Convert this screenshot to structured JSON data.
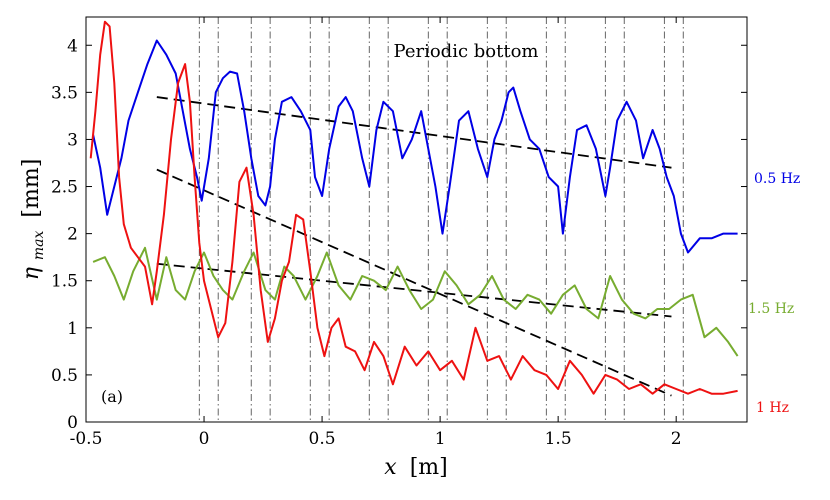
{
  "chart_data": {
    "type": "line",
    "title": "Periodic bottom",
    "panel_label": "(a)",
    "xlabel_var": "x",
    "xlabel_unit": "[m]",
    "ylabel_var": "η",
    "ylabel_sub": "max",
    "ylabel_unit": "[mm]",
    "xlim": [
      -0.5,
      2.3
    ],
    "ylim": [
      0,
      4.3
    ],
    "xticks": [
      -0.5,
      0,
      0.5,
      1,
      1.5,
      2
    ],
    "xtick_labels": [
      "-0.5",
      "0",
      "0.5",
      "1",
      "1.5",
      "2"
    ],
    "yticks": [
      0,
      0.5,
      1,
      1.5,
      2,
      2.5,
      3,
      3.5,
      4
    ],
    "ytick_labels": [
      "0",
      "0.5",
      "1",
      "1.5",
      "2",
      "2.5",
      "3",
      "3.5",
      "4"
    ],
    "grid": false,
    "vlines": [
      -0.02,
      0.06,
      0.2,
      0.28,
      0.45,
      0.53,
      0.7,
      0.78,
      0.95,
      1.03,
      1.2,
      1.28,
      1.45,
      1.53,
      1.7,
      1.78,
      1.95,
      2.03
    ],
    "series": [
      {
        "name": "0.5 Hz",
        "color": "#0000e6",
        "x": [
          -0.47,
          -0.44,
          -0.41,
          -0.38,
          -0.35,
          -0.32,
          -0.28,
          -0.24,
          -0.2,
          -0.16,
          -0.12,
          -0.09,
          -0.06,
          -0.03,
          -0.01,
          0.02,
          0.05,
          0.08,
          0.11,
          0.14,
          0.17,
          0.2,
          0.23,
          0.26,
          0.28,
          0.3,
          0.33,
          0.37,
          0.41,
          0.45,
          0.47,
          0.5,
          0.53,
          0.57,
          0.6,
          0.63,
          0.67,
          0.7,
          0.73,
          0.76,
          0.8,
          0.84,
          0.88,
          0.92,
          0.95,
          0.98,
          1.01,
          1.04,
          1.08,
          1.12,
          1.16,
          1.2,
          1.23,
          1.26,
          1.29,
          1.31,
          1.34,
          1.38,
          1.42,
          1.46,
          1.5,
          1.52,
          1.55,
          1.58,
          1.62,
          1.66,
          1.7,
          1.72,
          1.75,
          1.79,
          1.83,
          1.86,
          1.9,
          1.93,
          1.96,
          1.99,
          2.02,
          2.05,
          2.1,
          2.15,
          2.2,
          2.26
        ],
        "values": [
          3.05,
          2.7,
          2.2,
          2.5,
          2.8,
          3.2,
          3.5,
          3.8,
          4.05,
          3.9,
          3.7,
          3.3,
          2.9,
          2.6,
          2.35,
          2.8,
          3.5,
          3.65,
          3.72,
          3.7,
          3.3,
          2.8,
          2.4,
          2.3,
          2.5,
          3.0,
          3.4,
          3.45,
          3.3,
          3.1,
          2.6,
          2.4,
          2.9,
          3.35,
          3.45,
          3.3,
          2.8,
          2.5,
          3.1,
          3.4,
          3.3,
          2.8,
          3.0,
          3.3,
          2.9,
          2.5,
          2.0,
          2.5,
          3.2,
          3.3,
          2.9,
          2.6,
          3.0,
          3.2,
          3.5,
          3.55,
          3.3,
          3.0,
          2.9,
          2.6,
          2.5,
          2.0,
          2.6,
          3.1,
          3.15,
          2.9,
          2.4,
          2.7,
          3.2,
          3.4,
          3.2,
          2.8,
          3.1,
          2.9,
          2.6,
          2.4,
          2.0,
          1.8,
          1.95,
          1.95,
          2.0,
          2.0
        ]
      },
      {
        "name": "1.5 Hz",
        "color": "#77ac30",
        "x": [
          -0.47,
          -0.42,
          -0.38,
          -0.34,
          -0.3,
          -0.25,
          -0.2,
          -0.16,
          -0.12,
          -0.08,
          -0.04,
          0.0,
          0.04,
          0.08,
          0.12,
          0.17,
          0.21,
          0.26,
          0.3,
          0.34,
          0.38,
          0.43,
          0.48,
          0.52,
          0.57,
          0.62,
          0.67,
          0.72,
          0.77,
          0.82,
          0.87,
          0.92,
          0.97,
          1.02,
          1.07,
          1.12,
          1.17,
          1.22,
          1.27,
          1.32,
          1.37,
          1.42,
          1.47,
          1.52,
          1.57,
          1.62,
          1.67,
          1.72,
          1.77,
          1.82,
          1.87,
          1.92,
          1.97,
          2.02,
          2.07,
          2.12,
          2.17,
          2.22,
          2.26
        ],
        "values": [
          1.7,
          1.75,
          1.55,
          1.3,
          1.6,
          1.85,
          1.3,
          1.75,
          1.4,
          1.3,
          1.6,
          1.8,
          1.55,
          1.4,
          1.3,
          1.6,
          1.8,
          1.4,
          1.3,
          1.65,
          1.55,
          1.3,
          1.55,
          1.8,
          1.45,
          1.3,
          1.55,
          1.5,
          1.4,
          1.65,
          1.4,
          1.2,
          1.3,
          1.6,
          1.45,
          1.25,
          1.35,
          1.55,
          1.3,
          1.2,
          1.35,
          1.3,
          1.15,
          1.35,
          1.45,
          1.2,
          1.1,
          1.55,
          1.3,
          1.15,
          1.1,
          1.2,
          1.2,
          1.3,
          1.35,
          0.9,
          1.0,
          0.85,
          0.7
        ]
      },
      {
        "name": "1 Hz",
        "color": "#ee1111",
        "x": [
          -0.48,
          -0.46,
          -0.44,
          -0.42,
          -0.4,
          -0.38,
          -0.36,
          -0.34,
          -0.31,
          -0.28,
          -0.25,
          -0.22,
          -0.2,
          -0.17,
          -0.14,
          -0.11,
          -0.08,
          -0.06,
          -0.04,
          -0.02,
          0.0,
          0.03,
          0.06,
          0.09,
          0.12,
          0.15,
          0.18,
          0.21,
          0.24,
          0.27,
          0.3,
          0.33,
          0.36,
          0.39,
          0.42,
          0.45,
          0.48,
          0.51,
          0.54,
          0.57,
          0.6,
          0.64,
          0.68,
          0.72,
          0.76,
          0.8,
          0.85,
          0.9,
          0.95,
          1.0,
          1.05,
          1.1,
          1.15,
          1.2,
          1.25,
          1.3,
          1.35,
          1.4,
          1.45,
          1.5,
          1.55,
          1.6,
          1.65,
          1.7,
          1.75,
          1.8,
          1.85,
          1.9,
          1.95,
          2.0,
          2.05,
          2.1,
          2.15,
          2.2,
          2.26
        ],
        "values": [
          2.8,
          3.3,
          3.9,
          4.25,
          4.2,
          3.6,
          2.6,
          2.1,
          1.85,
          1.75,
          1.65,
          1.25,
          1.6,
          2.2,
          3.0,
          3.6,
          3.8,
          3.4,
          2.6,
          1.9,
          1.5,
          1.2,
          0.9,
          1.05,
          1.7,
          2.55,
          2.7,
          2.2,
          1.4,
          0.85,
          1.1,
          1.5,
          1.7,
          2.2,
          2.15,
          1.6,
          1.0,
          0.7,
          1.0,
          1.1,
          0.8,
          0.75,
          0.55,
          0.85,
          0.7,
          0.4,
          0.8,
          0.6,
          0.75,
          0.55,
          0.65,
          0.45,
          1.0,
          0.65,
          0.7,
          0.45,
          0.7,
          0.55,
          0.5,
          0.35,
          0.65,
          0.5,
          0.3,
          0.5,
          0.45,
          0.35,
          0.4,
          0.3,
          0.4,
          0.35,
          0.3,
          0.35,
          0.3,
          0.3,
          0.33
        ]
      }
    ],
    "fit_lines": [
      {
        "for": "0.5 Hz",
        "x": [
          -0.2,
          1.98
        ],
        "values": [
          3.45,
          2.7
        ]
      },
      {
        "for": "1.5 Hz",
        "x": [
          -0.2,
          1.98
        ],
        "values": [
          1.68,
          1.12
        ]
      },
      {
        "for": "1 Hz",
        "x": [
          -0.2,
          1.98
        ],
        "values": [
          2.68,
          0.28
        ]
      }
    ]
  }
}
